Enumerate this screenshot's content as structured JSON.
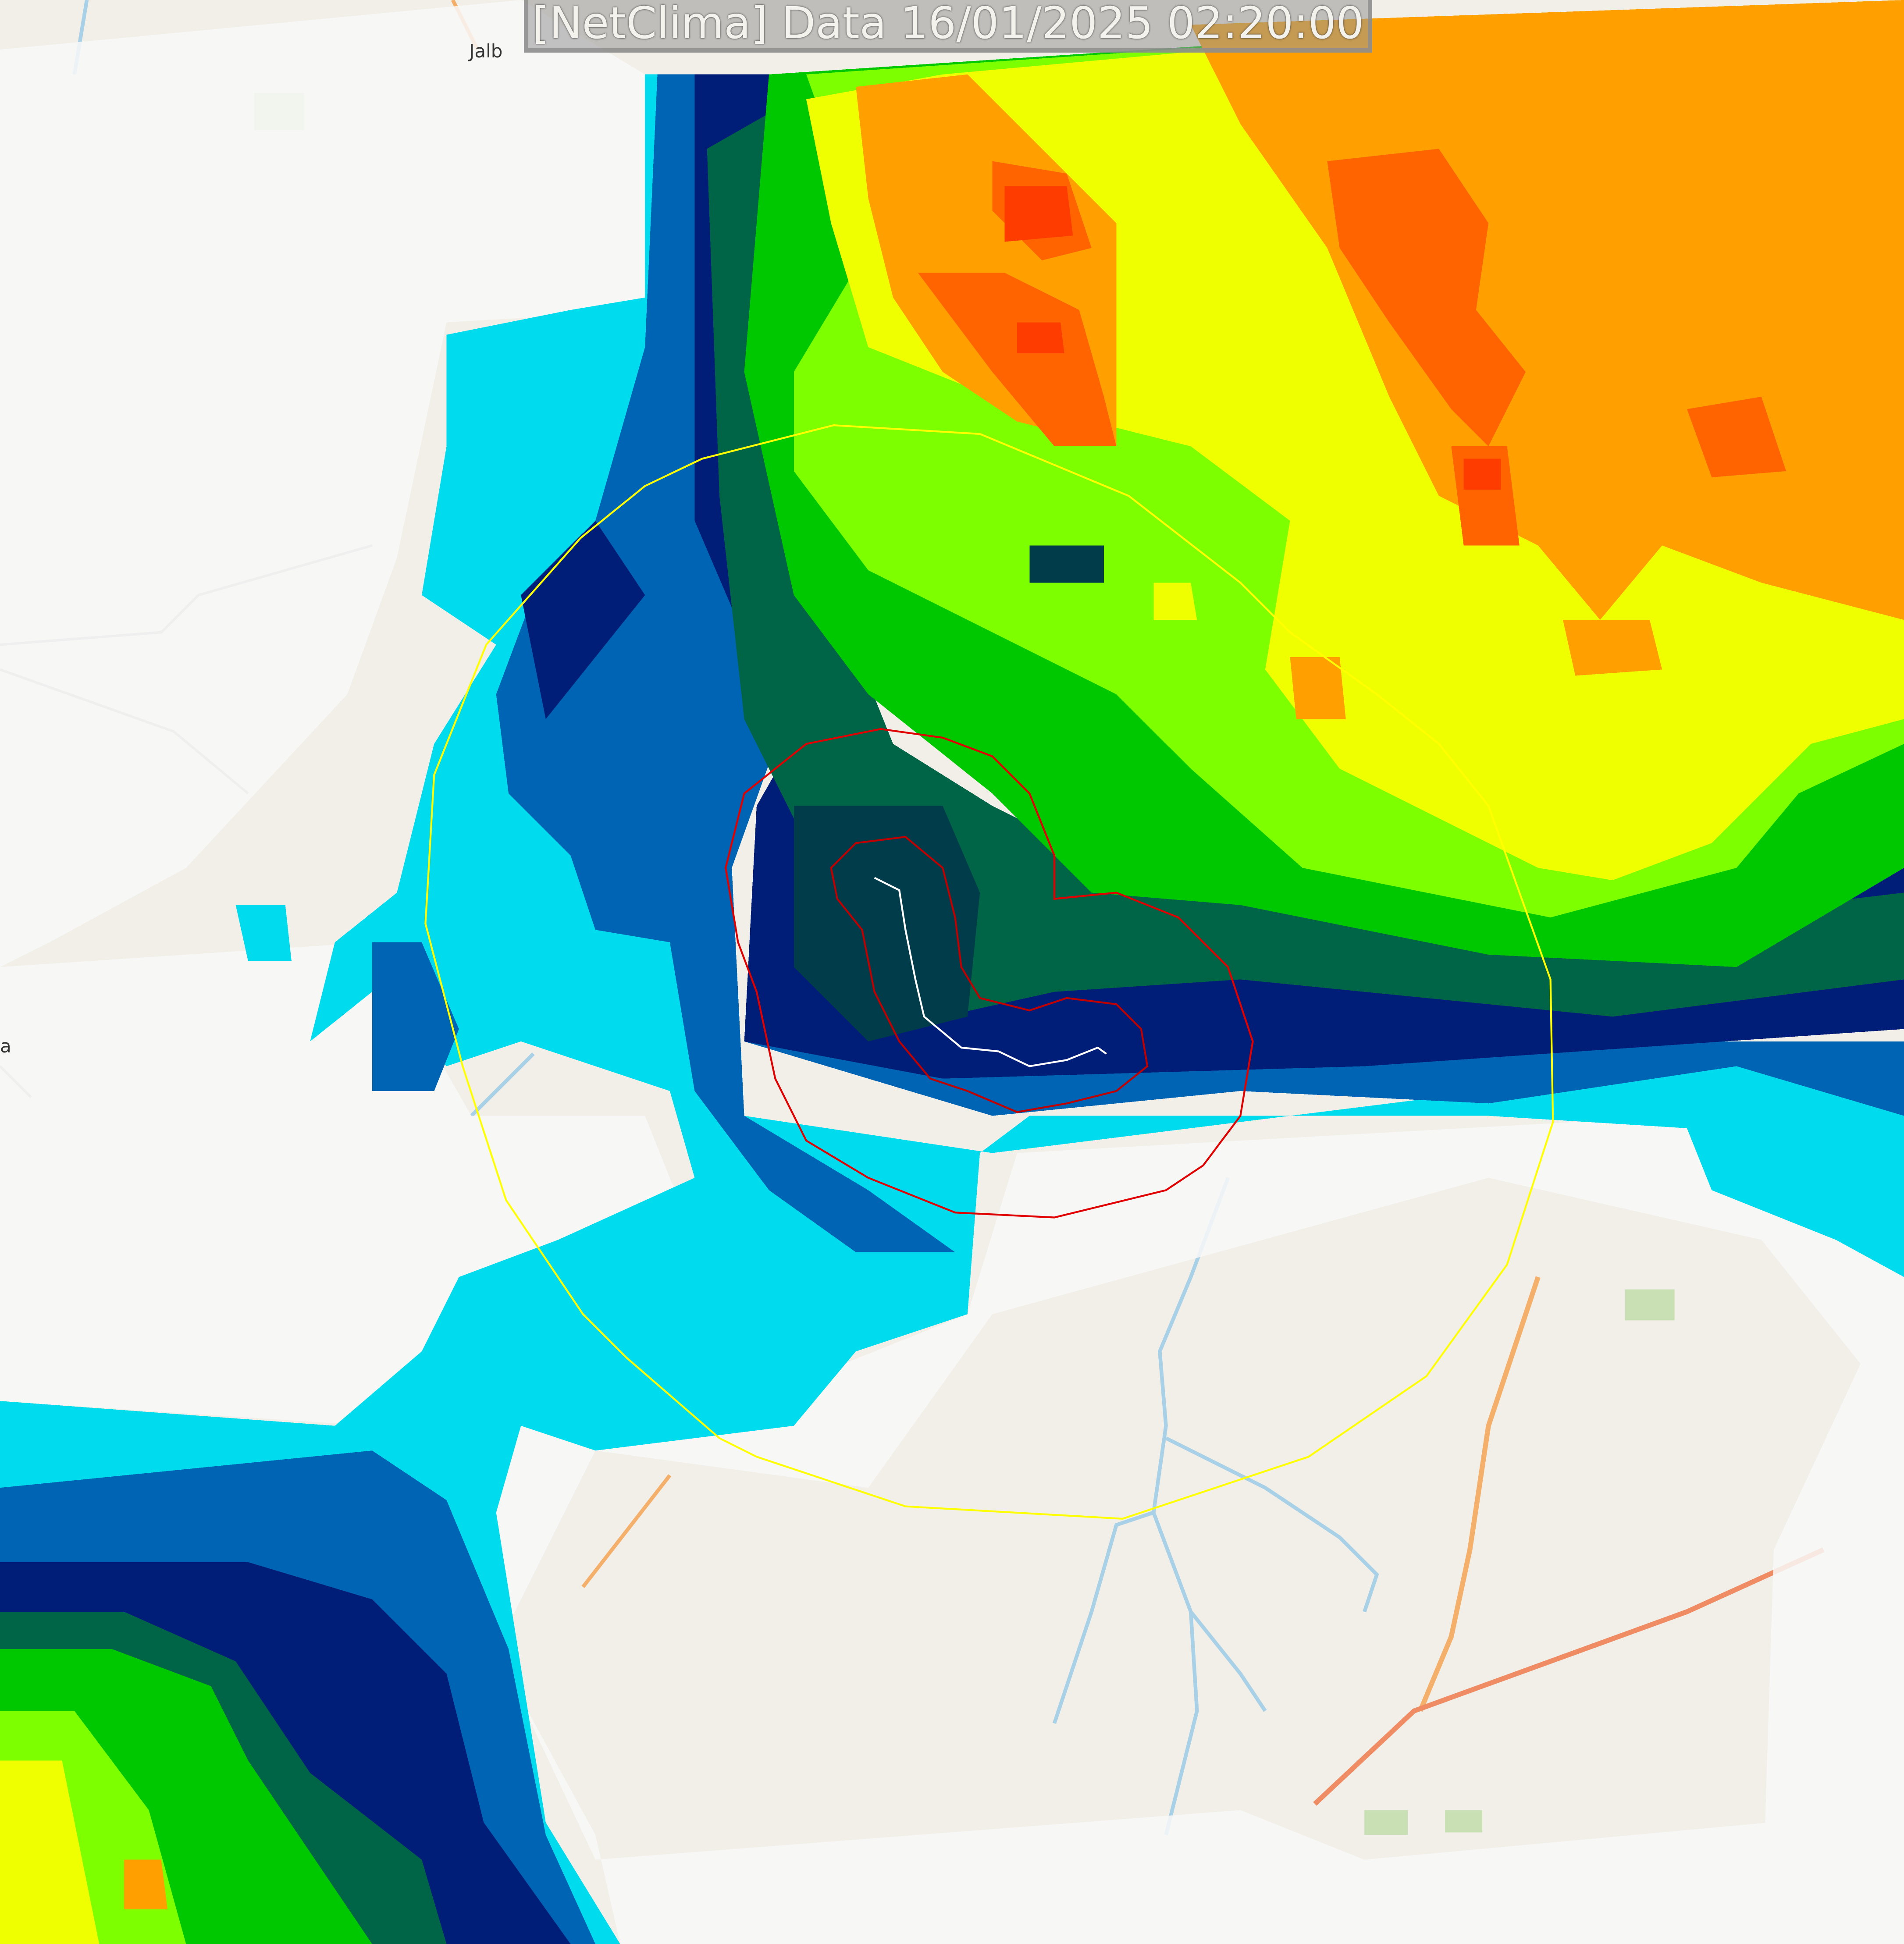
{
  "title": "[NetClima] Data 16/01/2025 02:20:00",
  "places": [
    {
      "name": "Jalb"
    },
    {
      "name": "a"
    }
  ],
  "colors": {
    "base_map": "#f2efe9",
    "river": "#a8d0e6",
    "road": "#f4b06a",
    "main_road": "#f08c64",
    "alert_outer": "#ffff00",
    "alert_inner": "#e00000",
    "track": "#ffffff",
    "radar_scale": [
      "#ffffff",
      "#00ffff",
      "#00c8e6",
      "#0096c8",
      "#0050a0",
      "#002880",
      "#000064",
      "#005046",
      "#007832",
      "#00c800",
      "#00ff00",
      "#80ff00",
      "#ffff00",
      "#ffc800",
      "#ff9600",
      "#ff5000"
    ]
  },
  "layers": [
    "radar-reflectivity",
    "warning-polygon-yellow",
    "warning-contour-red",
    "storm-track"
  ]
}
